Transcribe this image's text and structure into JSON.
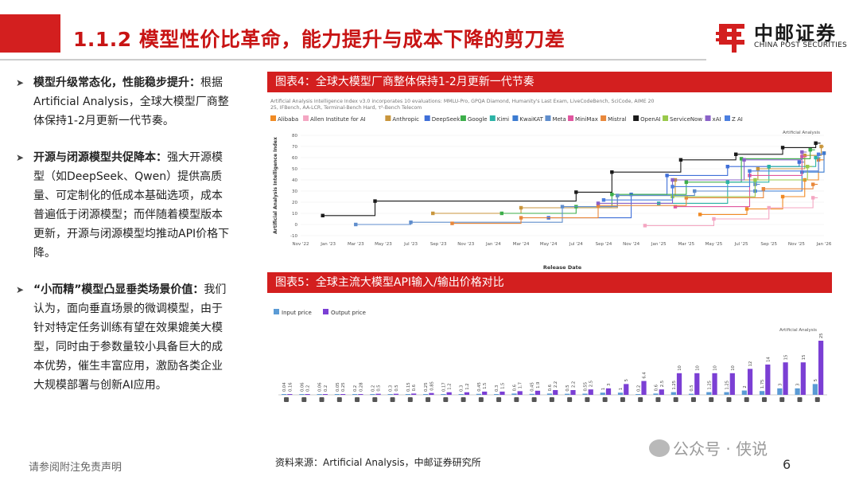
{
  "slide": {
    "title": "1.1.2 模型性价比革命，能力提升与成本下降的剪刀差",
    "logo_cn": "中邮证券",
    "logo_en": "CHINA POST SECURITIES",
    "footer_note": "请参阅附注免责声明",
    "page_number": "6",
    "watermark": "公众号 · 侠说"
  },
  "bullets": [
    {
      "head": "模型升级常态化，性能稳步提升：",
      "body": "根据Artificial Analysis，全球大模型厂商整体保持1-2月更新一代节奏。"
    },
    {
      "head": "开源与闭源模型共促降本：",
      "body": "强大开源模型（如DeepSeek、Qwen）提供高质量、可定制化的低成本基础选项，成本普遍低于闭源模型；而伴随着模型版本更新，开源与闭源模型均推动API价格下降。"
    },
    {
      "head": "“小而精”模型凸显垂类场景价值：",
      "body": "我们认为，面向垂直场景的微调模型，由于针对特定任务训练有望在效果媲美大模型，同时由于参数量较小具备巨大的成本优势，催生丰富应用，激励各类企业大规模部署与创新AI应用。"
    }
  ],
  "figures": {
    "fig4_title": "图表4：全球大模型厂商整体保持1-2月更新一代节奏",
    "fig5_title": "图表5：全球主流大模型API输入/输出价格对比",
    "source": "资料来源：Artificial Analysis，中邮证券研究所"
  },
  "colors": {
    "brand_red": "#d31f1f",
    "input_price": "#5b9bd5",
    "output_price": "#7b3fd4"
  },
  "chart_data": [
    {
      "type": "line",
      "subtitle": "Artificial Analysis Intelligence Index v3.0 incorporates 10 evaluations: MMLU-Pro, GPQA Diamond, Humanity's Last Exam, LiveCodeBench, SciCode, AIME 2025, IFBench, AA-LCR, Terminal-Bench Hard, τ²-Bench Telecom",
      "watermark": "Artificial Analysis",
      "xlabel": "Release Date",
      "ylabel": "Artificial Analysis Intelligence Index",
      "x_ticks": [
        "Nov '22",
        "Jan '23",
        "Mar '23",
        "May '23",
        "Jul '23",
        "Sep '23",
        "Nov '23",
        "Jan '24",
        "Mar '24",
        "May '24",
        "Jul '24",
        "Sep '24",
        "Nov '24",
        "Jan '25",
        "Mar '25",
        "May '25",
        "Jul '25",
        "Sep '25",
        "Nov '25",
        "Jan '26"
      ],
      "y_ticks": [
        -10,
        0,
        10,
        20,
        30,
        40,
        50,
        60,
        70,
        80
      ],
      "ylim": [
        -10,
        80
      ],
      "series": [
        {
          "name": "Alibaba",
          "color": "#f08a24",
          "points": [
            [
              14.5,
              9
            ],
            [
              16.2,
              14
            ],
            [
              17.5,
              25
            ],
            [
              18.3,
              40
            ],
            [
              18.8,
              58
            ],
            [
              19.0,
              64
            ]
          ]
        },
        {
          "name": "Allen Institute for AI",
          "color": "#f4a6c2",
          "points": [
            [
              12.5,
              -1
            ],
            [
              15.0,
              5
            ],
            [
              17.0,
              15
            ],
            [
              18.6,
              24
            ]
          ]
        },
        {
          "name": "Anthropic",
          "color": "#c9963c",
          "points": [
            [
              4.8,
              10
            ],
            [
              8.0,
              15
            ],
            [
              11.5,
              26
            ],
            [
              13.6,
              40
            ],
            [
              16.6,
              50
            ],
            [
              18.3,
              62
            ],
            [
              18.9,
              70
            ]
          ]
        },
        {
          "name": "DeepSeek",
          "color": "#3f6fd8",
          "points": [
            [
              9.0,
              6
            ],
            [
              12.0,
              27
            ],
            [
              13.3,
              44
            ],
            [
              15.5,
              52
            ],
            [
              18.1,
              56
            ]
          ]
        },
        {
          "name": "Google",
          "color": "#3cae4a",
          "points": [
            [
              7.3,
              10
            ],
            [
              10.0,
              16
            ],
            [
              11.3,
              27
            ],
            [
              14.0,
              38
            ],
            [
              16.0,
              59
            ],
            [
              18.5,
              67
            ]
          ]
        },
        {
          "name": "Kimi",
          "color": "#2bb3a6",
          "points": [
            [
              13.0,
              19
            ],
            [
              15.5,
              38
            ],
            [
              17.0,
              52
            ],
            [
              18.7,
              60
            ]
          ]
        },
        {
          "name": "KwaiKAT",
          "color": "#3b7bd1",
          "points": [
            [
              16.5,
              30
            ],
            [
              18.2,
              47
            ],
            [
              19.0,
              64
            ]
          ]
        },
        {
          "name": "Meta",
          "color": "#5f8dcc",
          "points": [
            [
              2.0,
              0
            ],
            [
              4.0,
              2
            ],
            [
              9.5,
              16
            ],
            [
              11.5,
              26
            ],
            [
              14.3,
              30
            ],
            [
              16.5,
              36
            ]
          ]
        },
        {
          "name": "MiniMax",
          "color": "#e0569f",
          "points": [
            [
              13.6,
              16
            ],
            [
              16.3,
              44
            ],
            [
              18.2,
              61
            ]
          ]
        },
        {
          "name": "Mistral",
          "color": "#e8873a",
          "points": [
            [
              5.5,
              1
            ],
            [
              8.0,
              6
            ],
            [
              10.8,
              17
            ],
            [
              14.0,
              24
            ],
            [
              16.8,
              32
            ],
            [
              18.6,
              36
            ]
          ]
        },
        {
          "name": "OpenAI",
          "color": "#1a1a1a",
          "points": [
            [
              0.8,
              8
            ],
            [
              2.7,
              21
            ],
            [
              10.0,
              29
            ],
            [
              11.3,
              47
            ],
            [
              13.8,
              58
            ],
            [
              15.8,
              63
            ],
            [
              17.5,
              69
            ],
            [
              18.7,
              73
            ]
          ]
        },
        {
          "name": "ServiceNow",
          "color": "#99c94b",
          "points": [
            [
              13.5,
              25
            ],
            [
              16.5,
              40
            ],
            [
              18.4,
              52
            ]
          ]
        },
        {
          "name": "xAI",
          "color": "#8a62c8",
          "points": [
            [
              10.8,
              19
            ],
            [
              13.5,
              40
            ],
            [
              16.1,
              58
            ],
            [
              18.2,
              65
            ]
          ]
        },
        {
          "name": "Z AI",
          "color": "#4c7fe0",
          "points": [
            [
              11.0,
              22
            ],
            [
              13.5,
              34
            ],
            [
              16.3,
              48
            ],
            [
              18.8,
              63
            ]
          ]
        }
      ]
    },
    {
      "type": "bar",
      "watermark": "Artificial Analysis",
      "series": [
        {
          "name": "Input price",
          "color": "#5b9bd5",
          "values": [
            0.04,
            0.06,
            0.06,
            0.05,
            0.2,
            0.2,
            0.3,
            0.15,
            0.25,
            0.17,
            0.3,
            0.45,
            0.3,
            0.6,
            0.45,
            0.6,
            0.5,
            0.55,
            1,
            1,
            0.2,
            0.6,
            1.25,
            0.5,
            1.25,
            1.25,
            2,
            1.75,
            3,
            3,
            5
          ]
        },
        {
          "name": "Output price",
          "color": "#7b3fd4",
          "values": [
            0.16,
            0.2,
            0.2,
            0.25,
            0.28,
            0.5,
            0.5,
            0.6,
            0.85,
            1.2,
            1.2,
            1.5,
            1.5,
            1.7,
            1.9,
            2.2,
            2.2,
            2.5,
            3,
            5,
            6.4,
            2.5,
            10,
            10,
            10,
            10,
            12,
            14,
            15,
            15,
            25
          ]
        }
      ]
    }
  ]
}
